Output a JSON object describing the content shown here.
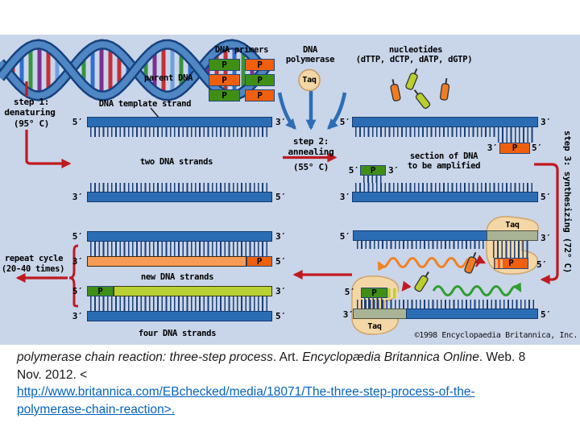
{
  "diagram": {
    "bg_color": "#c9d5e9",
    "accent_red": "#bf1a20",
    "strand_blue": "#2a6db5",
    "strand_orange": "#f89c55",
    "strand_yellow_green": "#b9d134",
    "primer_green": "#3f8f16",
    "primer_orange": "#ee5f0e",
    "taq_tan": "#f4d7a6",
    "labels": {
      "parent_dna": "parent DNA",
      "step1_title": "step 1:",
      "step1_name": "denaturing",
      "step1_temp": "(95° C)",
      "dna_template_strand": "DNA template strand",
      "dna_primers": "DNA primers",
      "dna_polymerase_1": "DNA",
      "dna_polymerase_2": "polymerase",
      "taq": "Taq",
      "nucleotides_1": "nucleotides",
      "nucleotides_2": "(dTTP, dCTP, dATP, dGTP)",
      "two_dna_strands": "two DNA strands",
      "step2_title": "step 2:",
      "step2_name": "annealing",
      "step2_temp": "(55° C)",
      "section_1": "section of DNA",
      "section_2": "to be amplified",
      "step3_vertical": "step 3: synthesizing (72° C)",
      "repeat_1": "repeat cycle",
      "repeat_2": "(20-40 times)",
      "new_dna_strands": "new DNA strands",
      "four_dna_strands": "four DNA strands",
      "copyright": "©1998 Encyclopaedia Britannica, Inc.",
      "p": "P",
      "five_prime": "5′",
      "three_prime": "3′"
    }
  },
  "citation": {
    "title_italic": "polymerase chain reaction: three-step process",
    "mid_1": ". Art. ",
    "source_italic": "Encyclopædia Britannica Online",
    "mid_2": ". Web. 8",
    "line_2": "Nov. 2012. <",
    "url_line_1": "http://www.britannica.com/EBchecked/media/18071/The-three-step-process-of-the-",
    "url_line_2": "polymerase-chain-reaction>.",
    "link_color": "#0563c1"
  }
}
